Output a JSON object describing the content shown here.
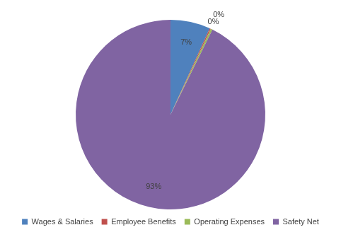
{
  "chart_data": {
    "type": "pie",
    "categories": [
      "Wages & Salaries",
      "Employee Benefits",
      "Operating Expenses",
      "Safety Net"
    ],
    "values": [
      6.8,
      0.2,
      0.3,
      92.7
    ],
    "value_labels": [
      "7%",
      "0%",
      "0%",
      "93%"
    ],
    "colors": [
      "#4f81bd",
      "#c0504d",
      "#9bbb59",
      "#8064a2"
    ],
    "legend": "bottom",
    "data_labels": true
  }
}
